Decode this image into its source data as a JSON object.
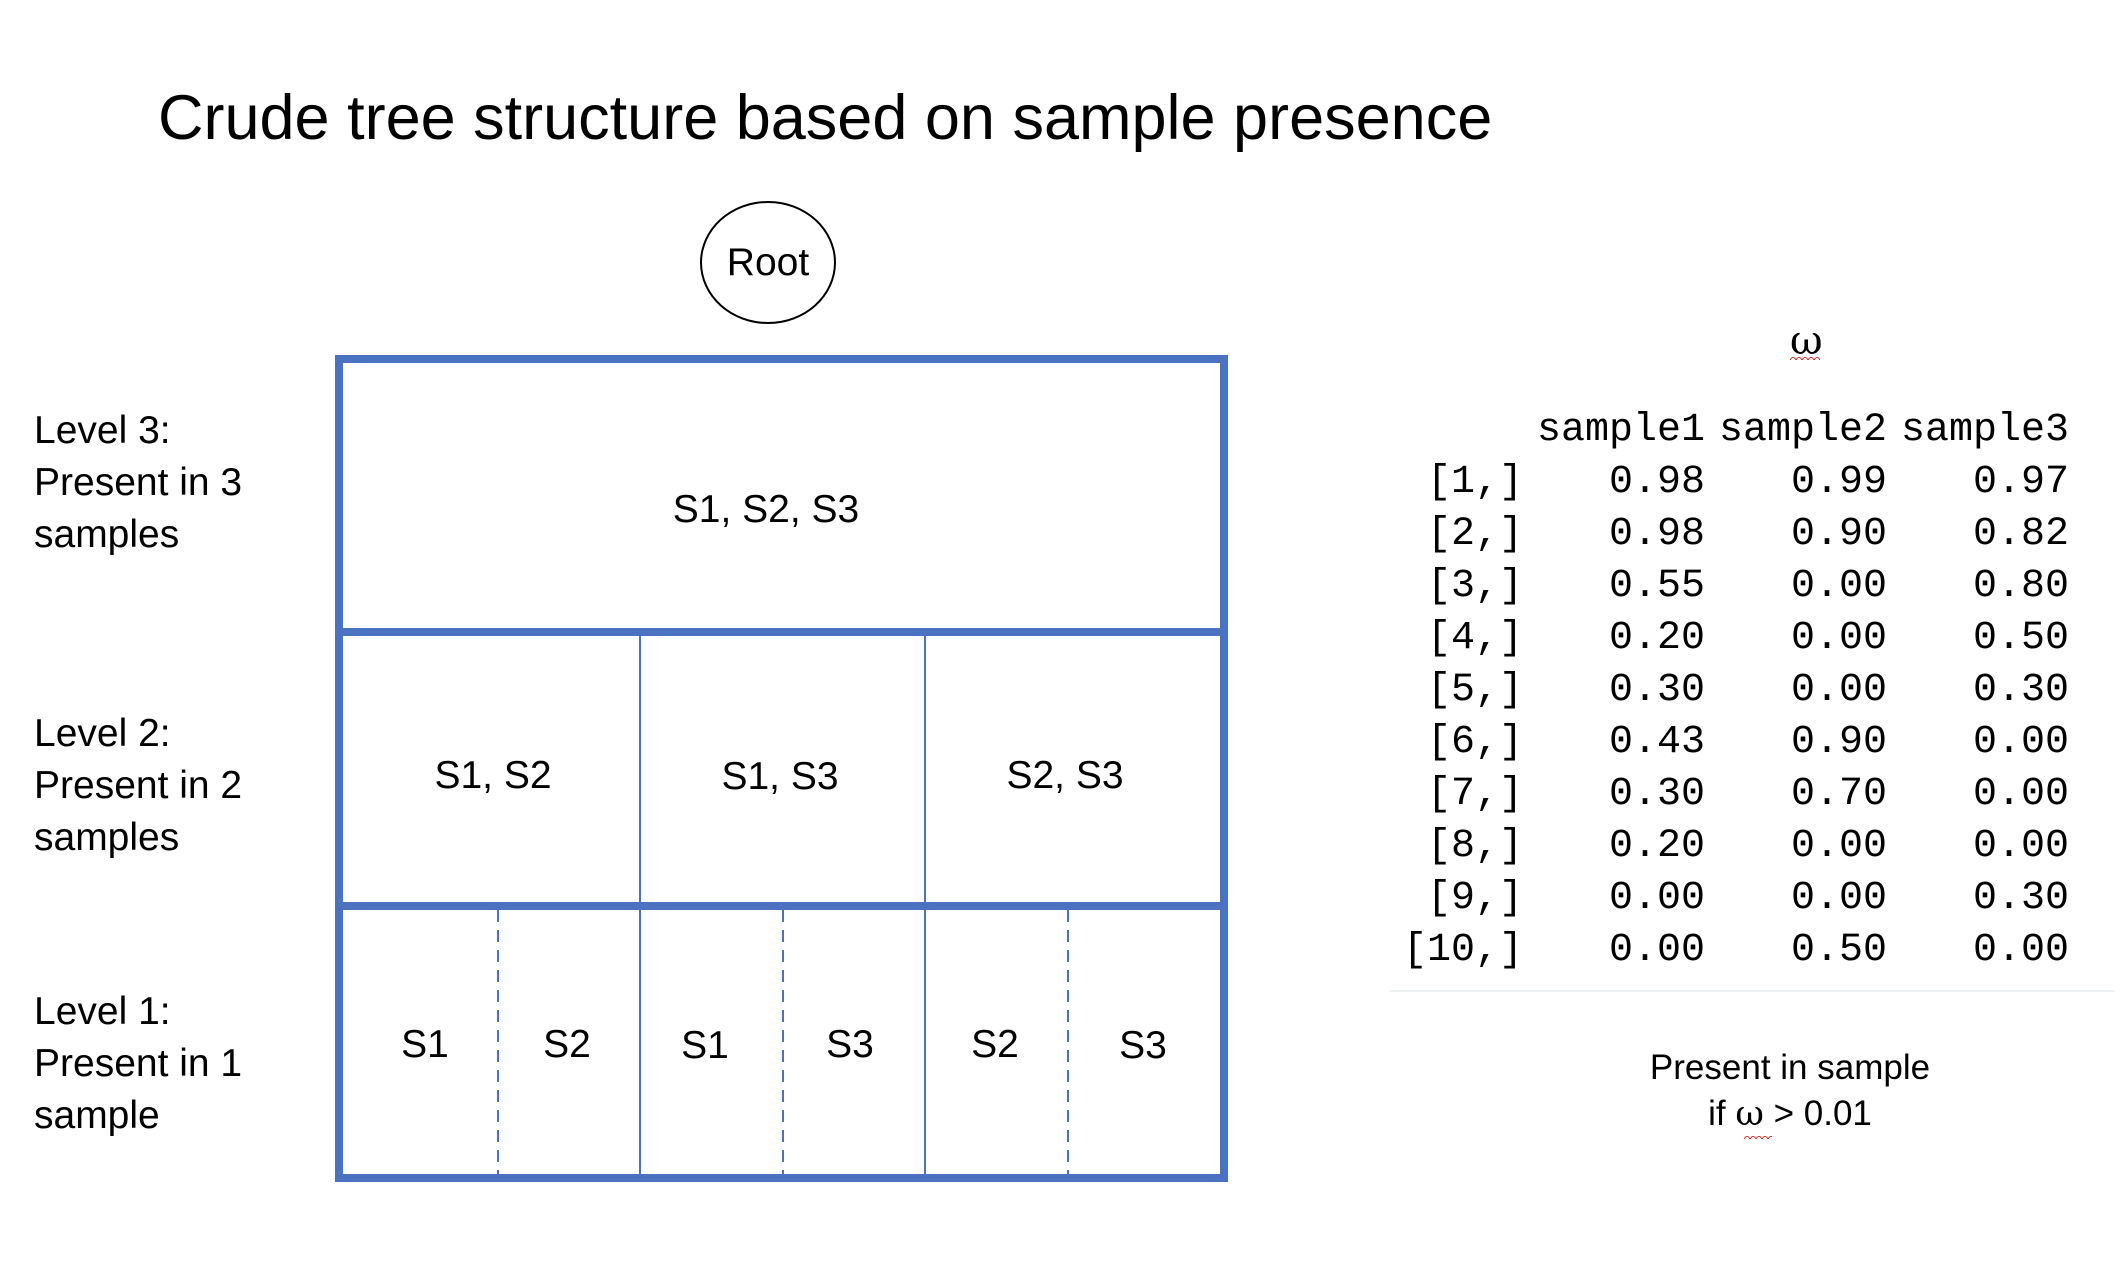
{
  "title": "Crude tree structure based on sample presence",
  "root": {
    "label": "Root"
  },
  "levels": [
    {
      "lines": [
        "Level 3:",
        "Present in 3",
        "samples"
      ]
    },
    {
      "lines": [
        "Level 2:",
        "Present in 2",
        "samples"
      ]
    },
    {
      "lines": [
        "Level 1:",
        "Present in 1",
        "sample"
      ]
    }
  ],
  "tree": {
    "level3": [
      "S1, S2, S3"
    ],
    "level2": [
      "S1, S2",
      "S1, S3",
      "S2, S3"
    ],
    "level1": [
      "S1",
      "S2",
      "S1",
      "S3",
      "S2",
      "S3"
    ],
    "line_color": "#4a72c0"
  },
  "matrix": {
    "symbol": "ω",
    "columns": [
      "sample1",
      "sample2",
      "sample3"
    ],
    "rows": [
      {
        "name": "[1,]",
        "values": [
          "0.98",
          "0.99",
          "0.97"
        ]
      },
      {
        "name": "[2,]",
        "values": [
          "0.98",
          "0.90",
          "0.82"
        ]
      },
      {
        "name": "[3,]",
        "values": [
          "0.55",
          "0.00",
          "0.80"
        ]
      },
      {
        "name": "[4,]",
        "values": [
          "0.20",
          "0.00",
          "0.50"
        ]
      },
      {
        "name": "[5,]",
        "values": [
          "0.30",
          "0.00",
          "0.30"
        ]
      },
      {
        "name": "[6,]",
        "values": [
          "0.43",
          "0.90",
          "0.00"
        ]
      },
      {
        "name": "[7,]",
        "values": [
          "0.30",
          "0.70",
          "0.00"
        ]
      },
      {
        "name": "[8,]",
        "values": [
          "0.20",
          "0.00",
          "0.00"
        ]
      },
      {
        "name": "[9,]",
        "values": [
          "0.00",
          "0.00",
          "0.30"
        ]
      },
      {
        "name": "[10,]",
        "values": [
          "0.00",
          "0.50",
          "0.00"
        ]
      }
    ]
  },
  "note": {
    "line1": "Present in sample",
    "prefix": "if ",
    "symbol": "ω",
    "suffix": " > 0.01"
  }
}
